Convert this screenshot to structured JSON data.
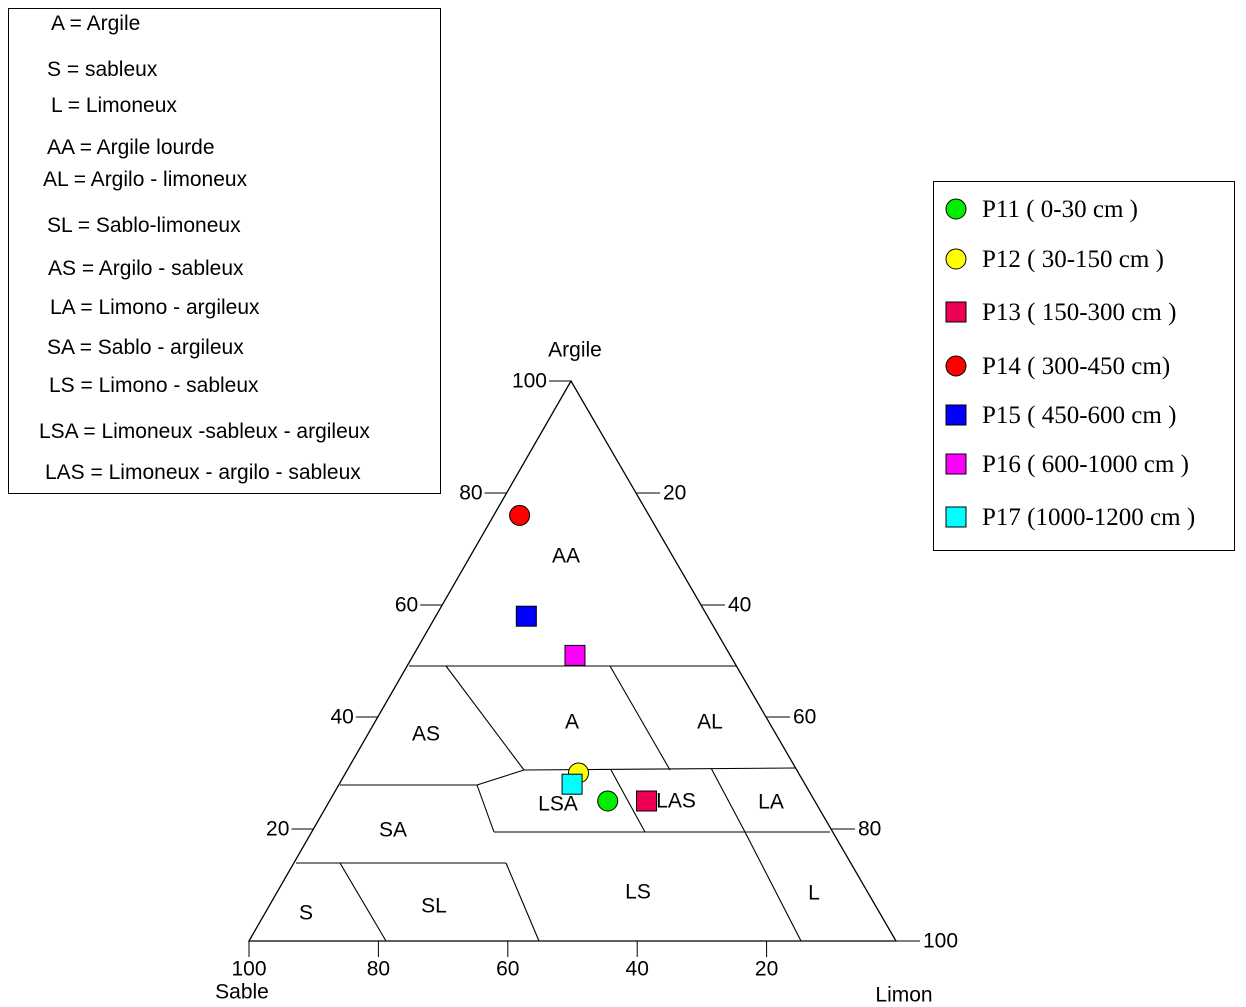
{
  "abbreviations": [
    {
      "text": "A = Argile"
    },
    {
      "text": "S = sableux"
    },
    {
      "text": "L = Limoneux"
    },
    {
      "text": "AA = Argile lourde"
    },
    {
      "text": "AL = Argilo - limoneux"
    },
    {
      "text": "SL = Sablo-limoneux"
    },
    {
      "text": "AS = Argilo - sableux"
    },
    {
      "text": "LA = Limono - argileux"
    },
    {
      "text": "SA = Sablo - argileux"
    },
    {
      "text": "LS = Limono - sableux"
    },
    {
      "text": "LSA = Limoneux -sableux - argileux"
    },
    {
      "text": "LAS = Limoneux - argilo - sableux"
    }
  ],
  "chart_data": {
    "type": "scatter",
    "subtype": "ternary",
    "axes": {
      "top": "Argile",
      "left": "Sable",
      "right": "Limon"
    },
    "ticks": {
      "argile": [
        "100",
        "80",
        "60",
        "40",
        "20"
      ],
      "limon": [
        "20",
        "40",
        "60",
        "80",
        "100"
      ],
      "sable": [
        "100",
        "80",
        "60",
        "40",
        "20"
      ]
    },
    "class_labels": [
      "AA",
      "AS",
      "A",
      "AL",
      "SA",
      "LSA",
      "LAS",
      "LA",
      "S",
      "SL",
      "LS",
      "L"
    ],
    "legend_placement": "right",
    "series": [
      {
        "name": "P11 ( 0-30 cm )",
        "marker": "circle",
        "color": "#00ee00",
        "argile": 25,
        "limon": 43
      },
      {
        "name": "P12 ( 30-150 cm )",
        "marker": "circle",
        "color": "#ffff00",
        "argile": 30,
        "limon": 36
      },
      {
        "name": "P13 ( 150-300 cm )",
        "marker": "square",
        "color": "#ee0055",
        "argile": 25,
        "limon": 49
      },
      {
        "name": "P14 ( 300-450 cm)",
        "marker": "circle",
        "color": "#ff0000",
        "argile": 76,
        "limon": 4
      },
      {
        "name": "P15 ( 450-600 cm )",
        "marker": "square",
        "color": "#0000ff",
        "argile": 58,
        "limon": 14
      },
      {
        "name": "P16 ( 600-1000 cm )",
        "marker": "square",
        "color": "#ff00ff",
        "argile": 51,
        "limon": 25
      },
      {
        "name": "P17 (1000-1200 cm )",
        "marker": "square",
        "color": "#00ffff",
        "argile": 28,
        "limon": 36
      }
    ]
  }
}
